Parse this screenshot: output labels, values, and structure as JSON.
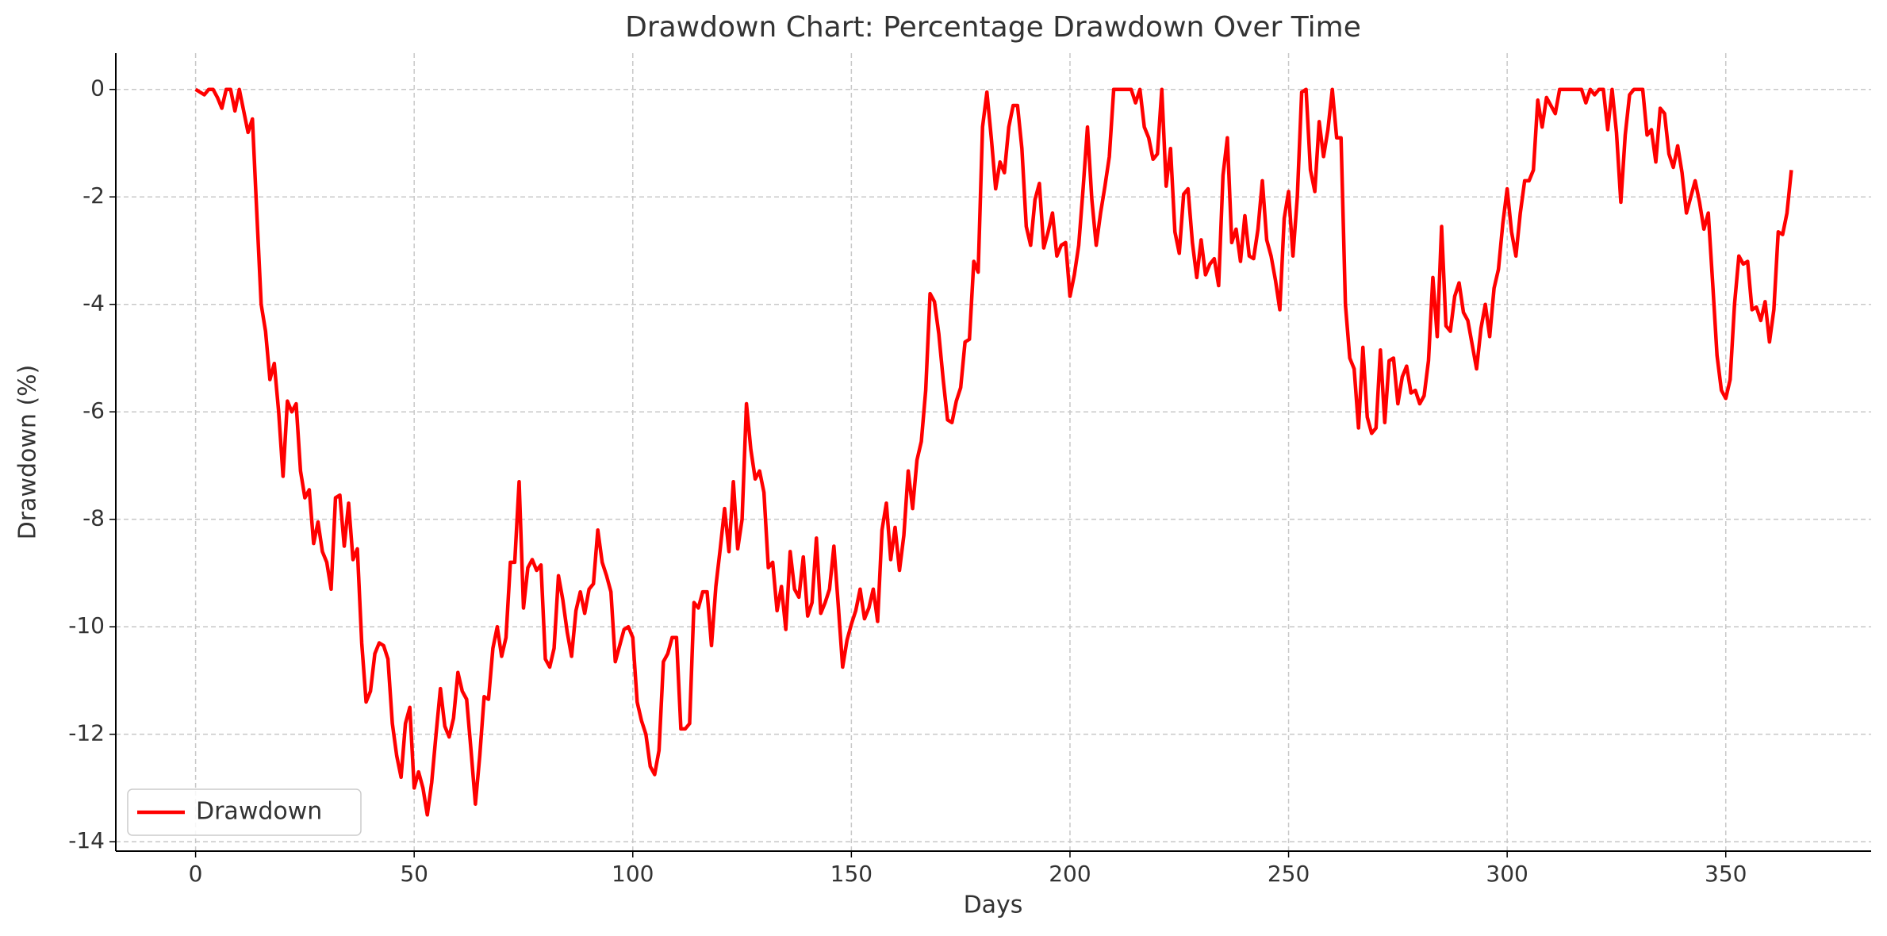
{
  "chart_data": {
    "type": "line",
    "title": "Drawdown Chart: Percentage Drawdown Over Time",
    "x_label": "Days",
    "y_label": "Drawdown (%)",
    "x": [
      0,
      1,
      2,
      3,
      4,
      5,
      6,
      7,
      8,
      9,
      10,
      11,
      12,
      13,
      14,
      15,
      16,
      17,
      18,
      19,
      20,
      21,
      22,
      23,
      24,
      25,
      26,
      27,
      28,
      29,
      30,
      31,
      32,
      33,
      34,
      35,
      36,
      37,
      38,
      39,
      40,
      41,
      42,
      43,
      44,
      45,
      46,
      47,
      48,
      49,
      50,
      51,
      52,
      53,
      54,
      55,
      56,
      57,
      58,
      59,
      60,
      61,
      62,
      63,
      64,
      65,
      66,
      67,
      68,
      69,
      70,
      71,
      72,
      73,
      74,
      75,
      76,
      77,
      78,
      79,
      80,
      81,
      82,
      83,
      84,
      85,
      86,
      87,
      88,
      89,
      90,
      91,
      92,
      93,
      94,
      95,
      96,
      97,
      98,
      99,
      100,
      101,
      102,
      103,
      104,
      105,
      106,
      107,
      108,
      109,
      110,
      111,
      112,
      113,
      114,
      115,
      116,
      117,
      118,
      119,
      120,
      121,
      122,
      123,
      124,
      125,
      126,
      127,
      128,
      129,
      130,
      131,
      132,
      133,
      134,
      135,
      136,
      137,
      138,
      139,
      140,
      141,
      142,
      143,
      144,
      145,
      146,
      147,
      148,
      149,
      150,
      151,
      152,
      153,
      154,
      155,
      156,
      157,
      158,
      159,
      160,
      161,
      162,
      163,
      164,
      165,
      166,
      167,
      168,
      169,
      170,
      171,
      172,
      173,
      174,
      175,
      176,
      177,
      178,
      179,
      180,
      181,
      182,
      183,
      184,
      185,
      186,
      187,
      188,
      189,
      190,
      191,
      192,
      193,
      194,
      195,
      196,
      197,
      198,
      199,
      200,
      201,
      202,
      203,
      204,
      205,
      206,
      207,
      208,
      209,
      210,
      211,
      212,
      213,
      214,
      215,
      216,
      217,
      218,
      219,
      220,
      221,
      222,
      223,
      224,
      225,
      226,
      227,
      228,
      229,
      230,
      231,
      232,
      233,
      234,
      235,
      236,
      237,
      238,
      239,
      240,
      241,
      242,
      243,
      244,
      245,
      246,
      247,
      248,
      249,
      250,
      251,
      252,
      253,
      254,
      255,
      256,
      257,
      258,
      259,
      260,
      261,
      262,
      263,
      264,
      265,
      266,
      267,
      268,
      269,
      270,
      271,
      272,
      273,
      274,
      275,
      276,
      277,
      278,
      279,
      280,
      281,
      282,
      283,
      284,
      285,
      286,
      287,
      288,
      289,
      290,
      291,
      292,
      293,
      294,
      295,
      296,
      297,
      298,
      299,
      300,
      301,
      302,
      303,
      304,
      305,
      306,
      307,
      308,
      309,
      310,
      311,
      312,
      313,
      314,
      315,
      316,
      317,
      318,
      319,
      320,
      321,
      322,
      323,
      324,
      325,
      326,
      327,
      328,
      329,
      330,
      331,
      332,
      333,
      334,
      335,
      336,
      337,
      338,
      339,
      340,
      341,
      342,
      343,
      344,
      345,
      346,
      347,
      348,
      349,
      350,
      351,
      352,
      353,
      354,
      355,
      356,
      357,
      358,
      359,
      360,
      361,
      362,
      363,
      364,
      365
    ],
    "series": [
      {
        "name": "Drawdown",
        "color": "#ff0000",
        "values": [
          0,
          -0.05,
          -0.1,
          0,
          0,
          -0.15,
          -0.35,
          0,
          0,
          -0.4,
          0,
          -0.4,
          -0.8,
          -0.55,
          -2.3,
          -4,
          -4.5,
          -5.4,
          -5.1,
          -6,
          -7.2,
          -5.8,
          -6,
          -5.85,
          -7.1,
          -7.6,
          -7.45,
          -8.45,
          -8.05,
          -8.6,
          -8.8,
          -9.3,
          -7.6,
          -7.55,
          -8.5,
          -7.7,
          -8.75,
          -8.55,
          -10.3,
          -11.4,
          -11.2,
          -10.5,
          -10.3,
          -10.35,
          -10.6,
          -11.8,
          -12.4,
          -12.8,
          -11.8,
          -11.5,
          -13,
          -12.7,
          -13,
          -13.5,
          -12.9,
          -12,
          -11.15,
          -11.85,
          -12.05,
          -11.7,
          -10.85,
          -11.2,
          -11.35,
          -12.3,
          -13.3,
          -12.4,
          -11.3,
          -11.35,
          -10.4,
          -10,
          -10.55,
          -10.2,
          -8.8,
          -8.8,
          -7.3,
          -9.65,
          -8.9,
          -8.75,
          -8.95,
          -8.85,
          -10.6,
          -10.75,
          -10.4,
          -9.05,
          -9.5,
          -10.1,
          -10.55,
          -9.7,
          -9.35,
          -9.75,
          -9.3,
          -9.2,
          -8.2,
          -8.8,
          -9.05,
          -9.35,
          -10.65,
          -10.35,
          -10.05,
          -10,
          -10.2,
          -11.4,
          -11.75,
          -12,
          -12.6,
          -12.75,
          -12.3,
          -10.65,
          -10.5,
          -10.2,
          -10.2,
          -11.9,
          -11.9,
          -11.8,
          -9.55,
          -9.65,
          -9.35,
          -9.35,
          -10.35,
          -9.25,
          -8.55,
          -7.8,
          -8.6,
          -7.3,
          -8.55,
          -8,
          -5.85,
          -6.7,
          -7.25,
          -7.1,
          -7.5,
          -8.9,
          -8.8,
          -9.7,
          -9.25,
          -10.05,
          -8.6,
          -9.3,
          -9.45,
          -8.7,
          -9.8,
          -9.55,
          -8.35,
          -9.75,
          -9.55,
          -9.3,
          -8.5,
          -9.6,
          -10.75,
          -10.25,
          -9.95,
          -9.7,
          -9.3,
          -9.85,
          -9.65,
          -9.3,
          -9.9,
          -8.2,
          -7.7,
          -8.75,
          -8.15,
          -8.95,
          -8.3,
          -7.1,
          -7.8,
          -6.9,
          -6.55,
          -5.6,
          -3.8,
          -3.95,
          -4.55,
          -5.4,
          -6.15,
          -6.2,
          -5.8,
          -5.55,
          -4.7,
          -4.65,
          -3.2,
          -3.4,
          -0.7,
          -0.05,
          -0.9,
          -1.85,
          -1.35,
          -1.55,
          -0.7,
          -0.3,
          -0.3,
          -1.1,
          -2.55,
          -2.9,
          -2.05,
          -1.75,
          -2.95,
          -2.65,
          -2.3,
          -3.1,
          -2.9,
          -2.85,
          -3.85,
          -3.45,
          -2.9,
          -1.85,
          -0.7,
          -2.05,
          -2.9,
          -2.3,
          -1.8,
          -1.25,
          0,
          0,
          0,
          0,
          0,
          -0.25,
          0,
          -0.7,
          -0.9,
          -1.3,
          -1.2,
          0,
          -1.8,
          -1.1,
          -2.65,
          -3.05,
          -1.95,
          -1.85,
          -2.85,
          -3.5,
          -2.8,
          -3.45,
          -3.25,
          -3.15,
          -3.65,
          -1.6,
          -0.9,
          -2.85,
          -2.6,
          -3.2,
          -2.35,
          -3.1,
          -3.15,
          -2.6,
          -1.7,
          -2.8,
          -3.1,
          -3.55,
          -4.1,
          -2.4,
          -1.9,
          -3.1,
          -2,
          -0.05,
          0,
          -1.5,
          -1.9,
          -0.6,
          -1.25,
          -0.75,
          0,
          -0.9,
          -0.9,
          -4,
          -5,
          -5.2,
          -6.3,
          -4.8,
          -6.1,
          -6.4,
          -6.3,
          -4.85,
          -6.2,
          -5.05,
          -5,
          -5.85,
          -5.35,
          -5.15,
          -5.65,
          -5.6,
          -5.85,
          -5.7,
          -5.05,
          -3.5,
          -4.6,
          -2.55,
          -4.4,
          -4.5,
          -3.85,
          -3.6,
          -4.15,
          -4.3,
          -4.75,
          -5.2,
          -4.45,
          -4,
          -4.6,
          -3.7,
          -3.35,
          -2.5,
          -1.85,
          -2.65,
          -3.1,
          -2.3,
          -1.7,
          -1.7,
          -1.5,
          -0.2,
          -0.7,
          -0.15,
          -0.3,
          -0.45,
          0,
          0,
          0,
          0,
          0,
          0,
          -0.25,
          0,
          -0.1,
          0,
          0,
          -0.75,
          0,
          -0.8,
          -2.1,
          -0.85,
          -0.1,
          0,
          0,
          0,
          -0.85,
          -0.75,
          -1.35,
          -0.35,
          -0.45,
          -1.2,
          -1.45,
          -1.05,
          -1.55,
          -2.3,
          -2,
          -1.7,
          -2.1,
          -2.6,
          -2.3,
          -3.6,
          -4.95,
          -5.6,
          -5.75,
          -5.4,
          -4,
          -3.1,
          -3.25,
          -3.2,
          -4.1,
          -4.05,
          -4.3,
          -3.95,
          -4.7,
          -4.1,
          -2.65,
          -2.7,
          -2.3,
          -1.5
        ]
      }
    ],
    "xlim": [
      -18.25,
      383.25
    ],
    "xticks": [
      0,
      50,
      100,
      150,
      200,
      250,
      300,
      350
    ],
    "ylim": [
      -14.175,
      0.675
    ],
    "yticks": [
      -14,
      -12,
      -10,
      -8,
      -6,
      -4,
      -2,
      0
    ],
    "grid": true,
    "legend": "lower left"
  }
}
